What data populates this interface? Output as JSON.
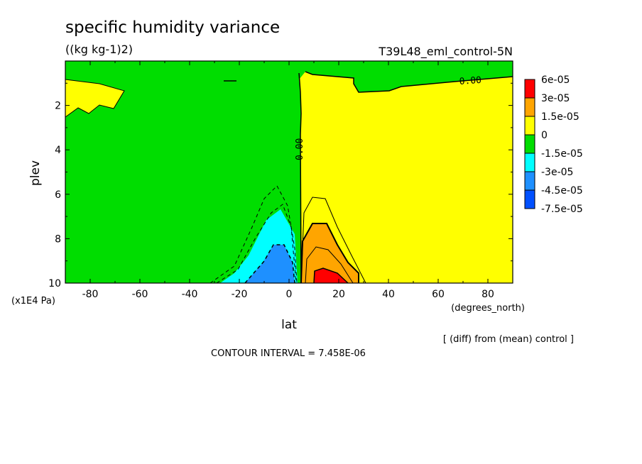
{
  "chart_data": {
    "type": "heatmap",
    "title": "specific humidity variance",
    "units": "((kg kg-1)2)",
    "run_label": "T39L48_eml_control-5N",
    "xlabel": "lat",
    "xunits": "(degrees_north)",
    "ylabel": "plev",
    "yunits": "(x1E4 Pa)",
    "xlim": [
      -90,
      90
    ],
    "ylim": [
      10,
      0
    ],
    "x_ticks": [
      -80,
      -60,
      -40,
      -20,
      0,
      20,
      40,
      60,
      80
    ],
    "y_ticks": [
      2,
      4,
      6,
      8,
      10
    ],
    "contour_label": "0.00",
    "contour_interval": "CONTOUR INTERVAL = 7.458E-06",
    "diff_note": "[ (diff) from (mean) control ]",
    "legend": {
      "labels": [
        "6e-05",
        "3e-05",
        "1.5e-05",
        "0",
        "-1.5e-05",
        "-3e-05",
        "-4.5e-05",
        "-7.5e-05"
      ],
      "colors": [
        "#ff0000",
        "#ffa500",
        "#ffff00",
        "#00dd00",
        "#00ffff",
        "#1e90ff",
        "#0050ff"
      ]
    },
    "regions": [
      {
        "name": "weak-negative",
        "color": "#00dd00",
        "extent_lat": [
          -90,
          3
        ],
        "extent_plev": [
          0.4,
          10
        ]
      },
      {
        "name": "weak-positive",
        "color": "#ffff00",
        "extent_lat": [
          3,
          90
        ],
        "extent_plev": [
          0.6,
          10
        ]
      },
      {
        "name": "positive-patch-polar",
        "color": "#ffff00",
        "extent_lat": [
          -90,
          -67
        ],
        "extent_plev": [
          0.8,
          2.5
        ]
      },
      {
        "name": "negative-core",
        "color": "#00ffff",
        "extent_lat": [
          -25,
          2
        ],
        "extent_plev": [
          6.6,
          10
        ]
      },
      {
        "name": "strong-negative-core",
        "color": "#1e90ff",
        "extent_lat": [
          -17,
          0
        ],
        "extent_plev": [
          8.2,
          10
        ]
      },
      {
        "name": "positive-core",
        "color": "#ffa500",
        "extent_lat": [
          4,
          24
        ],
        "extent_plev": [
          7.2,
          10
        ]
      },
      {
        "name": "strong-positive-core",
        "color": "#ff0000",
        "extent_lat": [
          11,
          24
        ],
        "extent_plev": [
          9.3,
          10
        ]
      }
    ]
  }
}
